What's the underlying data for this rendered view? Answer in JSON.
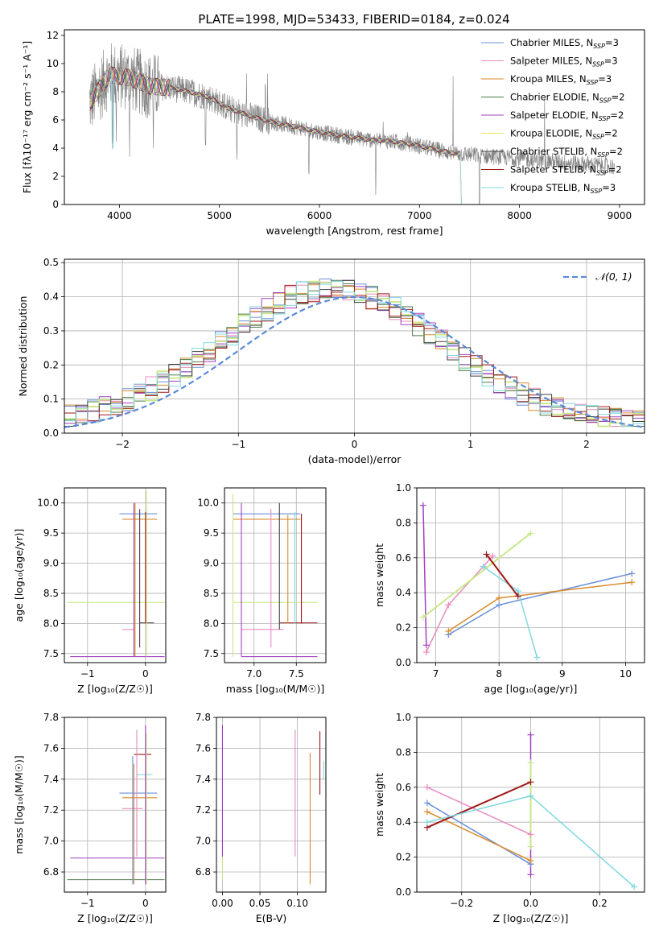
{
  "figure": {
    "title": "PLATE=1998, MJD=53433, FIBERID=0184, z=0.024"
  },
  "colors": {
    "chabrier_miles": "#6a8fd8",
    "salpeter_miles": "#e88bbf",
    "kroupa_miles": "#d98a2b",
    "chabrier_elodie": "#4a7a4a",
    "salpeter_elodie": "#a040c0",
    "kroupa_elodie": "#e8e860",
    "chabrier_stelib": "#404040",
    "salpeter_stelib": "#a01818",
    "kroupa_stelib": "#80d8e0",
    "data_gray": "#808080",
    "normal_curve": "#5b8ad8",
    "stelib_cyan": "#7fd8e0",
    "lightgreen": "#c8e888"
  },
  "chart_data": [
    {
      "id": "spectrum",
      "type": "line",
      "xlabel": "wavelength [Angstrom, rest frame]",
      "ylabel": "Flux [fλ10⁻¹⁷ erg cm⁻² s⁻¹ A⁻¹]",
      "xlim": [
        3450,
        9250
      ],
      "ylim": [
        0,
        12.4
      ],
      "xticks": [
        4000,
        5000,
        6000,
        7000,
        8000,
        9000
      ],
      "yticks": [
        0,
        2,
        4,
        6,
        8,
        10,
        12
      ],
      "legend_position": "top-right",
      "continuum": {
        "x": [
          3700,
          3900,
          4100,
          4300,
          4500,
          4700,
          4900,
          5100,
          5300,
          5500,
          5700,
          5900,
          6100,
          6300,
          6500,
          6700,
          6900,
          7100,
          7300,
          7400
        ],
        "y": [
          7.2,
          9.2,
          9.0,
          8.4,
          8.3,
          8.0,
          7.6,
          6.8,
          6.3,
          5.9,
          5.6,
          5.3,
          5.0,
          4.8,
          4.6,
          4.5,
          4.3,
          4.0,
          3.7,
          3.6
        ]
      },
      "data_extent": [
        3700,
        8950
      ],
      "series": [
        {
          "name": "Chabrier MILES, N_SSP=3",
          "label": "Chabrier MILES, N",
          "sub": "SSP",
          "suffix": "=3",
          "color": "#6a8fd8"
        },
        {
          "name": "Salpeter MILES, N_SSP=3",
          "label": "Salpeter MILES, N",
          "sub": "SSP",
          "suffix": "=3",
          "color": "#e88bbf"
        },
        {
          "name": "Kroupa MILES, N_SSP=3",
          "label": "Kroupa MILES, N",
          "sub": "SSP",
          "suffix": "=3",
          "color": "#d98a2b"
        },
        {
          "name": "Chabrier ELODIE, N_SSP=2",
          "label": "Chabrier ELODIE, N",
          "sub": "SSP",
          "suffix": "=2",
          "color": "#4a7a4a"
        },
        {
          "name": "Salpeter ELODIE, N_SSP=2",
          "label": "Salpeter ELODIE, N",
          "sub": "SSP",
          "suffix": "=2",
          "color": "#a040c0"
        },
        {
          "name": "Kroupa ELODIE, N_SSP=2",
          "label": "Kroupa ELODIE, N",
          "sub": "SSP",
          "suffix": "=2",
          "color": "#e8e860"
        },
        {
          "name": "Chabrier STELIB, N_SSP=2",
          "label": "Chabrier STELIB, N",
          "sub": "SSP",
          "suffix": "=2",
          "color": "#404040"
        },
        {
          "name": "Salpeter STELIB, N_SSP=2",
          "label": "Salpeter STELIB, N",
          "sub": "SSP",
          "suffix": "=2",
          "color": "#a01818"
        },
        {
          "name": "Kroupa STELIB, N_SSP=3",
          "label": "Kroupa STELIB, N",
          "sub": "SSP",
          "suffix": "=3",
          "color": "#80d8e0"
        }
      ]
    },
    {
      "id": "residuals",
      "type": "bar",
      "xlabel": "(data-model)/error",
      "ylabel": "Normed distribution",
      "xlim": [
        -2.5,
        2.5
      ],
      "ylim": [
        0,
        0.51
      ],
      "xticks": [
        -2,
        -1,
        0,
        1,
        2
      ],
      "yticks": [
        0.0,
        0.1,
        0.2,
        0.3,
        0.4,
        0.5
      ],
      "grid": true,
      "legend_position": "top-right",
      "normal_label": "𝒩(0, 1)",
      "bin_width": 0.1
    },
    {
      "id": "age_vs_Z",
      "type": "scatter",
      "xlabel": "Z [log₁₀(Z/Z☉)]",
      "ylabel": "age  [log₁₀(age/yr)]",
      "xlim": [
        -1.4,
        0.35
      ],
      "ylim": [
        7.35,
        10.25
      ],
      "xticks": [
        -1,
        0
      ],
      "yticks": [
        7.5,
        8.0,
        8.5,
        9.0,
        9.5,
        10.0
      ],
      "grid": true,
      "hlines": [
        {
          "y": 9.82,
          "x0": -0.45,
          "x1": 0.2,
          "color": "#6a8fd8"
        },
        {
          "y": 9.73,
          "x0": -0.4,
          "x1": 0.2,
          "color": "#d98a2b"
        },
        {
          "y": 8.35,
          "x0": -1.35,
          "x1": 0.33,
          "color": "#c8e888"
        },
        {
          "y": 8.01,
          "x0": -0.1,
          "x1": 0.15,
          "color": "#404040"
        },
        {
          "y": 7.9,
          "x0": -0.4,
          "x1": -0.2,
          "color": "#e88bbf"
        },
        {
          "y": 7.45,
          "x0": -1.3,
          "x1": 0.33,
          "color": "#a040c0"
        }
      ],
      "vlines": [
        {
          "x": -0.2,
          "y0": 7.45,
          "y1": 10.0,
          "color": "#a040c0"
        },
        {
          "x": -0.18,
          "y0": 7.45,
          "y1": 10.0,
          "color": "#d98a2b"
        },
        {
          "x": -0.1,
          "y0": 7.6,
          "y1": 9.9,
          "color": "#404040"
        },
        {
          "x": 0.0,
          "y0": 8.0,
          "y1": 9.85,
          "color": "#a01818"
        },
        {
          "x": 0.02,
          "y0": 7.45,
          "y1": 10.2,
          "color": "#c8e888"
        }
      ]
    },
    {
      "id": "age_vs_mass",
      "type": "scatter",
      "xlabel": "mass [log₁₀(M/M☉)]",
      "ylabel": "",
      "xlim": [
        6.65,
        7.85
      ],
      "ylim": [
        7.35,
        10.25
      ],
      "xticks": [
        7.0,
        7.5
      ],
      "yticks": [
        7.5,
        8.0,
        8.5,
        9.0,
        9.5,
        10.0
      ],
      "grid": true,
      "hlines": [
        {
          "y": 9.82,
          "x0": 6.75,
          "x1": 7.55,
          "color": "#6a8fd8"
        },
        {
          "y": 9.73,
          "x0": 6.75,
          "x1": 7.55,
          "color": "#d98a2b"
        },
        {
          "y": 8.35,
          "x0": 6.75,
          "x1": 7.75,
          "color": "#c8e888"
        },
        {
          "y": 8.01,
          "x0": 7.3,
          "x1": 7.75,
          "color": "#a01818"
        },
        {
          "y": 7.9,
          "x0": 6.85,
          "x1": 7.35,
          "color": "#e88bbf"
        },
        {
          "y": 7.45,
          "x0": 6.85,
          "x1": 7.75,
          "color": "#a040c0"
        }
      ],
      "vlines": [
        {
          "x": 6.75,
          "y0": 7.45,
          "y1": 10.15,
          "color": "#c8e888"
        },
        {
          "x": 6.85,
          "y0": 7.45,
          "y1": 10.0,
          "color": "#a040c0"
        },
        {
          "x": 7.2,
          "y0": 7.6,
          "y1": 9.9,
          "color": "#e88bbf"
        },
        {
          "x": 7.3,
          "y0": 7.9,
          "y1": 10.0,
          "color": "#404040"
        },
        {
          "x": 7.4,
          "y0": 8.0,
          "y1": 9.8,
          "color": "#d98a2b"
        },
        {
          "x": 7.48,
          "y0": 8.0,
          "y1": 9.85,
          "color": "#80d8e0"
        },
        {
          "x": 7.56,
          "y0": 8.0,
          "y1": 9.82,
          "color": "#a01818"
        }
      ]
    },
    {
      "id": "mass_weight_vs_age",
      "type": "line",
      "xlabel": "age  [log₁₀(age/yr)]",
      "ylabel": "mass weight",
      "xlim": [
        6.7,
        10.3
      ],
      "ylim": [
        0,
        1.0
      ],
      "xticks": [
        7,
        8,
        9,
        10
      ],
      "yticks": [
        0.0,
        0.2,
        0.4,
        0.6,
        0.8,
        1.0
      ],
      "grid": true,
      "series": [
        {
          "x": [
            7.2,
            8.0,
            10.1
          ],
          "y": [
            0.16,
            0.33,
            0.51
          ],
          "color": "#6a8fd8"
        },
        {
          "x": [
            7.2,
            8.0,
            10.1
          ],
          "y": [
            0.18,
            0.37,
            0.46
          ],
          "color": "#d98a2b"
        },
        {
          "x": [
            6.85,
            7.2,
            7.9
          ],
          "y": [
            0.06,
            0.33,
            0.61
          ],
          "color": "#e88bbf"
        },
        {
          "x": [
            6.8,
            6.85
          ],
          "y": [
            0.9,
            0.1
          ],
          "color": "#a040c0"
        },
        {
          "x": [
            6.8,
            8.5
          ],
          "y": [
            0.26,
            0.74
          ],
          "color": "#c8e888"
        },
        {
          "x": [
            7.75,
            8.3,
            8.6
          ],
          "y": [
            0.55,
            0.41,
            0.03
          ],
          "color": "#80d8e0"
        },
        {
          "x": [
            7.8,
            8.3
          ],
          "y": [
            0.62,
            0.38
          ],
          "color": "#a01818"
        }
      ]
    },
    {
      "id": "mass_vs_Z",
      "type": "scatter",
      "xlabel": "Z [log₁₀(Z/Z☉)]",
      "ylabel": "mass [log₁₀(M/M☉)]",
      "xlim": [
        -1.4,
        0.35
      ],
      "ylim": [
        6.67,
        7.8
      ],
      "xticks": [
        -1,
        0
      ],
      "yticks": [
        6.8,
        7.0,
        7.2,
        7.4,
        7.6,
        7.8
      ],
      "grid": true,
      "hlines": [
        {
          "y": 7.56,
          "x0": -0.2,
          "x1": 0.1,
          "color": "#a01818"
        },
        {
          "y": 7.43,
          "x0": -0.15,
          "x1": 0.12,
          "color": "#80d8e0"
        },
        {
          "y": 7.31,
          "x0": -0.45,
          "x1": 0.2,
          "color": "#6a8fd8"
        },
        {
          "y": 7.28,
          "x0": -0.4,
          "x1": 0.2,
          "color": "#d98a2b"
        },
        {
          "y": 7.21,
          "x0": -0.4,
          "x1": -0.05,
          "color": "#e88bbf"
        },
        {
          "y": 6.89,
          "x0": -1.3,
          "x1": 0.33,
          "color": "#a040c0"
        },
        {
          "y": 6.75,
          "x0": -1.35,
          "x1": 0.33,
          "color": "#4a7a4a"
        }
      ],
      "vlines": [
        {
          "x": -0.22,
          "y0": 6.72,
          "y1": 7.55,
          "color": "#6a8fd8"
        },
        {
          "x": -0.2,
          "y0": 6.72,
          "y1": 7.5,
          "color": "#d98a2b"
        },
        {
          "x": -0.15,
          "y0": 6.9,
          "y1": 7.72,
          "color": "#e88bbf"
        },
        {
          "x": 0.0,
          "y0": 6.72,
          "y1": 7.75,
          "color": "#a040c0"
        },
        {
          "x": 0.02,
          "y0": 6.72,
          "y1": 7.7,
          "color": "#c8e888"
        }
      ]
    },
    {
      "id": "mass_vs_ebv",
      "type": "scatter",
      "xlabel": "E(B-V)",
      "ylabel": "",
      "xlim": [
        -0.008,
        0.138
      ],
      "ylim": [
        6.67,
        7.8
      ],
      "xticks": [
        0.0,
        0.05,
        0.1
      ],
      "yticks": [
        6.8,
        7.0,
        7.2,
        7.4,
        7.6,
        7.8
      ],
      "grid": true,
      "vlines": [
        {
          "x": 0.0,
          "y0": 6.75,
          "y1": 7.75,
          "color": "#c8e888"
        },
        {
          "x": 0.0,
          "y0": 6.9,
          "y1": 7.75,
          "color": "#a040c0"
        },
        {
          "x": 0.097,
          "y0": 6.9,
          "y1": 7.72,
          "color": "#e88bbf"
        },
        {
          "x": 0.117,
          "y0": 6.72,
          "y1": 7.57,
          "color": "#d98a2b"
        },
        {
          "x": 0.13,
          "y0": 7.3,
          "y1": 7.71,
          "color": "#a01818"
        },
        {
          "x": 0.135,
          "y0": 7.4,
          "y1": 7.52,
          "color": "#80d8e0"
        }
      ]
    },
    {
      "id": "mass_weight_vs_Z",
      "type": "line",
      "xlabel": "Z [log₁₀(Z/Z☉)]",
      "ylabel": "mass weight",
      "xlim": [
        -0.33,
        0.33
      ],
      "ylim": [
        0,
        1.0
      ],
      "xticks": [
        -0.2,
        0.0,
        0.2
      ],
      "yticks": [
        0.0,
        0.2,
        0.4,
        0.6,
        0.8,
        1.0
      ],
      "grid": true,
      "series": [
        {
          "x": [
            -0.3,
            0.0
          ],
          "y": [
            0.6,
            0.33
          ],
          "color": "#e88bbf"
        },
        {
          "x": [
            -0.3,
            0.0
          ],
          "y": [
            0.51,
            0.16
          ],
          "color": "#6a8fd8"
        },
        {
          "x": [
            -0.3,
            0.0
          ],
          "y": [
            0.46,
            0.18
          ],
          "color": "#d98a2b"
        },
        {
          "x": [
            -0.3,
            0.0
          ],
          "y": [
            0.37,
            0.63
          ],
          "color": "#a01818"
        },
        {
          "x": [
            -0.3,
            0.0,
            0.3
          ],
          "y": [
            0.4,
            0.55,
            0.03
          ],
          "color": "#80d8e0"
        },
        {
          "x": [
            0.0,
            0.0
          ],
          "y": [
            0.9,
            0.1
          ],
          "color": "#a040c0"
        },
        {
          "x": [
            0.0,
            0.0
          ],
          "y": [
            0.74,
            0.26
          ],
          "color": "#c8e888"
        }
      ]
    }
  ]
}
